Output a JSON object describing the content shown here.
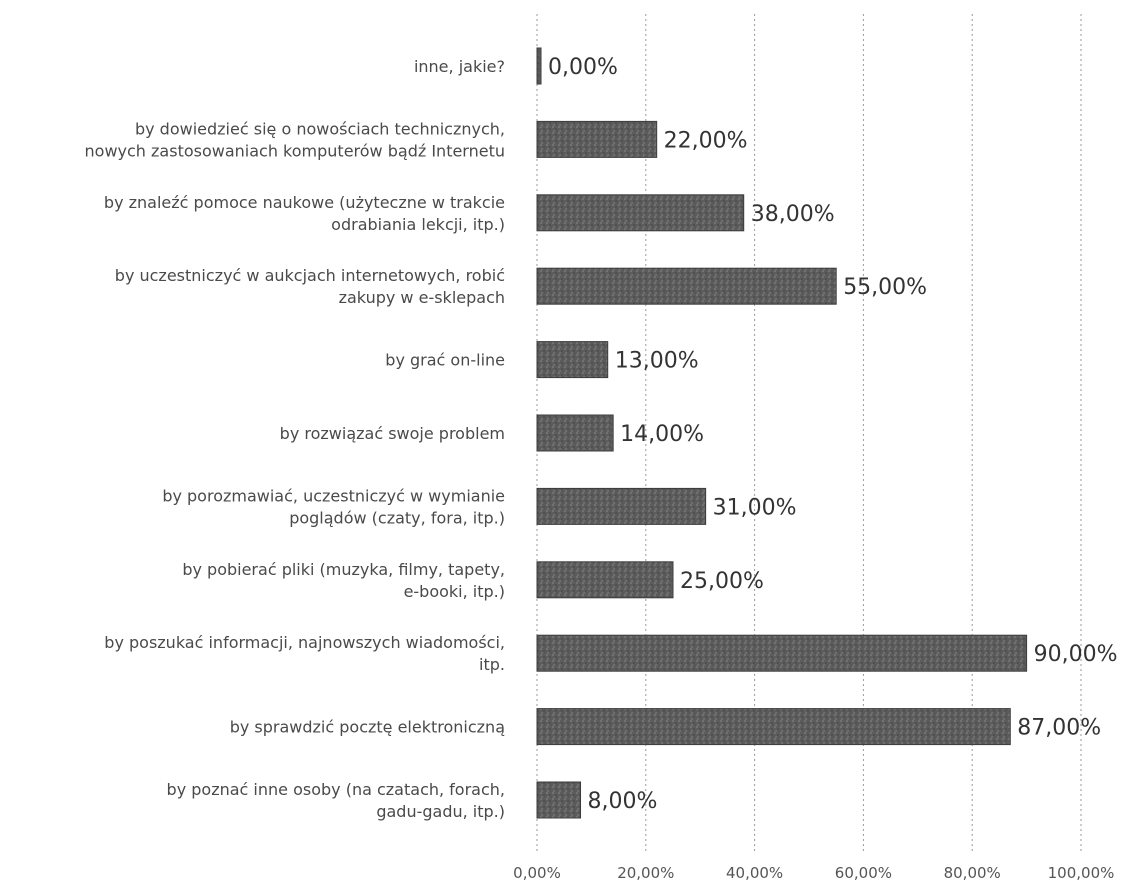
{
  "chart_data": {
    "type": "bar",
    "orientation": "horizontal",
    "title": "",
    "xlabel": "",
    "ylabel": "",
    "xlim": [
      0,
      100
    ],
    "grid": true,
    "bar_color": "#5f5f5f",
    "categories": [
      "inne, jakie?",
      "by dowiedzieć się o nowościach technicznych,\nnowych zastosowaniach komputerów bądź Internetu",
      "by znaleźć pomoce naukowe (użyteczne w trakcie\nodrabiania lekcji, itp.)",
      "by uczestniczyć w aukcjach internetowych, robić\nzakupy w e-sklepach",
      "by grać on-line",
      "by rozwiązać swoje problem",
      "by porozmawiać, uczestniczyć w wymianie\npoglądów (czaty, fora, itp.)",
      "by pobierać pliki (muzyka, filmy, tapety,\ne-booki, itp.)",
      "by poszukać informacji, najnowszych wiadomości,\nitp.",
      "by sprawdzić pocztę elektroniczną",
      "by poznać inne osoby (na czatach, forach,\ngadu-gadu, itp.)"
    ],
    "values": [
      0,
      22,
      38,
      55,
      13,
      14,
      31,
      25,
      90,
      87,
      8
    ],
    "value_labels": [
      "0,00%",
      "22,00%",
      "38,00%",
      "55,00%",
      "13,00%",
      "14,00%",
      "31,00%",
      "25,00%",
      "90,00%",
      "87,00%",
      "8,00%"
    ],
    "x_ticks": [
      0,
      20,
      40,
      60,
      80,
      100
    ],
    "x_tick_labels": [
      "0,00%",
      "20,00%",
      "40,00%",
      "60,00%",
      "80,00%",
      "100,00%"
    ]
  }
}
